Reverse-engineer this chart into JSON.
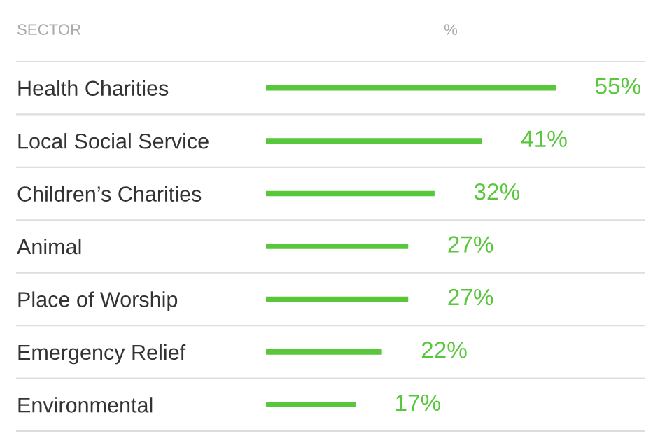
{
  "chart_data": {
    "type": "bar",
    "orientation": "horizontal",
    "ylabel": "SECTOR",
    "xlabel": "%",
    "categories": [
      "Health Charities",
      "Local Social Service",
      "Children’s Charities",
      "Animal",
      "Place of Worship",
      "Emergency Relief",
      "Environmental"
    ],
    "values": [
      55,
      41,
      32,
      27,
      27,
      22,
      17
    ],
    "value_labels": [
      "55%",
      "41%",
      "32%",
      "27%",
      "27%",
      "22%",
      "17%"
    ],
    "color": "#58c73c",
    "grid": "y"
  }
}
